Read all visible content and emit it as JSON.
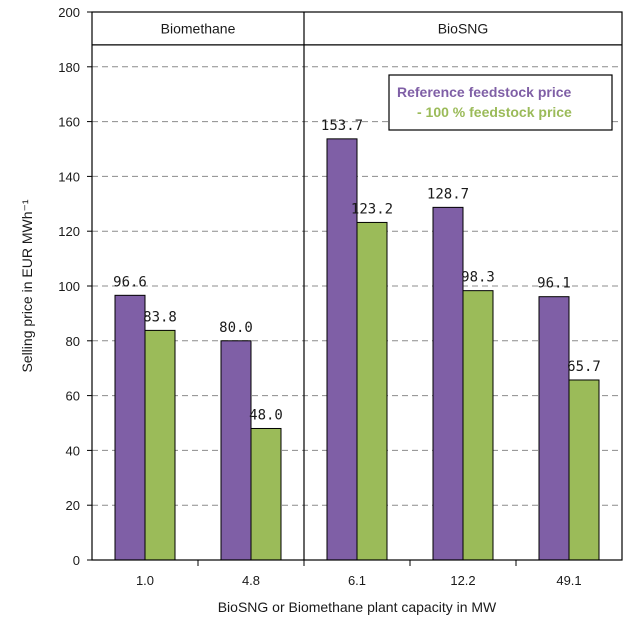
{
  "chart_data": {
    "type": "bar",
    "categories": [
      "1.0",
      "4.8",
      "6.1",
      "12.2",
      "49.1"
    ],
    "series": [
      {
        "name": "Reference feedstock price",
        "values": [
          96.6,
          80.0,
          153.7,
          128.7,
          96.1
        ],
        "value_labels": [
          "96.6",
          "80.0",
          "153.7",
          "128.7",
          "96.1"
        ],
        "color": "#7f5fa6"
      },
      {
        "name": "- 100 % feedstock price",
        "values": [
          83.8,
          48.0,
          123.2,
          98.3,
          65.7
        ],
        "value_labels": [
          "83.8",
          "48.0",
          "123.2",
          "98.3",
          "65.7"
        ],
        "color": "#9bbb59"
      }
    ],
    "sections": [
      {
        "label": "Biomethane",
        "categories": [
          "1.0",
          "4.8"
        ]
      },
      {
        "label": "BioSNG",
        "categories": [
          "6.1",
          "12.2",
          "49.1"
        ]
      }
    ],
    "xlabel": "BioSNG or Biomethane plant capacity in MW",
    "ylabel": "Selling price in EUR MWh⁻¹",
    "ylim": [
      0,
      200
    ],
    "yticks": [
      0,
      20,
      40,
      60,
      80,
      100,
      120,
      140,
      160,
      180,
      200
    ],
    "grid": true,
    "legend_position": "top-right"
  }
}
